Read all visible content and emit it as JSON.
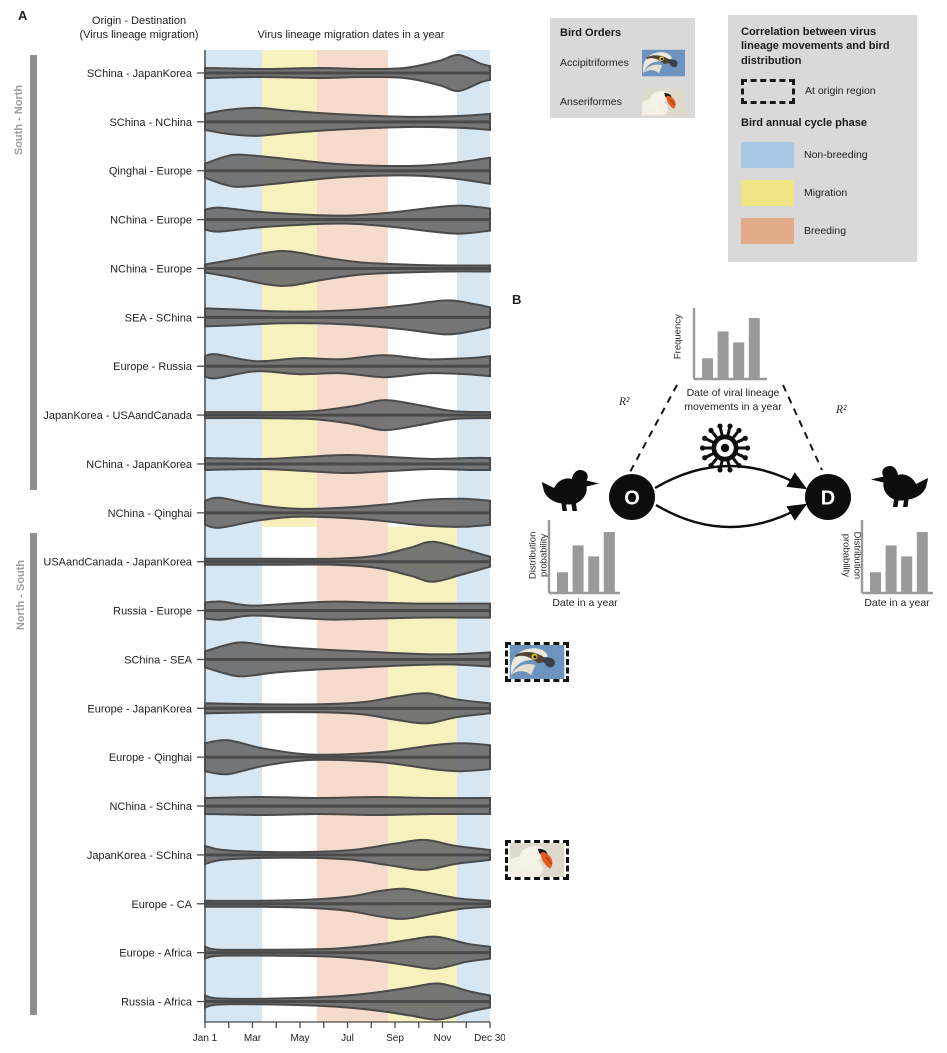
{
  "colors": {
    "legend_bg": "#d9d9d9",
    "violin_fill": "#6f6f6f",
    "violin_stroke": "#4a4a4a",
    "group_bar": "#8f8f8f",
    "group_label": "#9e9e9e",
    "mini_chart": "#9a9a9a",
    "axis": "#4a4a4a",
    "text": "#1f1f1f"
  },
  "panel_a": {
    "label": "A",
    "col_header_line1": "Origin - Destination",
    "col_header_line2": "(Virus lineage migration)",
    "plot_title": "Virus lineage migration dates in a year",
    "group_bars": [
      {
        "label": "South - North",
        "rows": "1-9"
      },
      {
        "label": "North - South",
        "rows": "11-20"
      }
    ]
  },
  "chart_data": {
    "type": "violin",
    "title": "Virus lineage migration dates in a year",
    "x_axis": {
      "ticks": [
        "Jan 1",
        "Mar",
        "May",
        "Jul",
        "Sep",
        "Nov",
        "Dec 30"
      ],
      "minor_ticks": "monthly",
      "range": "Jan 1 - Dec 30"
    },
    "phase_colors": {
      "Non-breeding": "#d6e6f3",
      "Migration": "#f7f1bd",
      "Breeding": "#f4dbcb"
    },
    "phase_band_layouts": {
      "south_north": [
        {
          "phase": "Non-breeding",
          "from": 0,
          "to": 0.2
        },
        {
          "phase": "Migration",
          "from": 0.2,
          "to": 0.393
        },
        {
          "phase": "Breeding",
          "from": 0.393,
          "to": 0.642
        },
        {
          "phase": "Non-breeding",
          "from": 0.884,
          "to": 1
        }
      ],
      "north_south": [
        {
          "phase": "Non-breeding",
          "from": 0,
          "to": 0.2
        },
        {
          "phase": "Breeding",
          "from": 0.393,
          "to": 0.642
        },
        {
          "phase": "Migration",
          "from": 0.642,
          "to": 0.884
        },
        {
          "phase": "Non-breeding",
          "from": 0.884,
          "to": 1
        }
      ]
    },
    "rows": [
      {
        "label": "SChina - JapanKorea",
        "group": "South - North",
        "bands": "south_north",
        "profile": [
          [
            0,
            5
          ],
          [
            0.2,
            4
          ],
          [
            0.4,
            5
          ],
          [
            0.55,
            4
          ],
          [
            0.7,
            5
          ],
          [
            0.82,
            12
          ],
          [
            0.89,
            18
          ],
          [
            0.97,
            9
          ],
          [
            1,
            7
          ]
        ]
      },
      {
        "label": "SChina - NChina",
        "group": "South - North",
        "bands": "south_north",
        "profile": [
          [
            0,
            8
          ],
          [
            0.08,
            12
          ],
          [
            0.18,
            14
          ],
          [
            0.3,
            11
          ],
          [
            0.45,
            8
          ],
          [
            0.6,
            6
          ],
          [
            0.75,
            5
          ],
          [
            0.9,
            6
          ],
          [
            1,
            8
          ]
        ]
      },
      {
        "label": "Qinghai - Europe",
        "group": "South - North",
        "bands": "south_north",
        "profile": [
          [
            0,
            7
          ],
          [
            0.07,
            14
          ],
          [
            0.13,
            16
          ],
          [
            0.28,
            12
          ],
          [
            0.45,
            7
          ],
          [
            0.6,
            5
          ],
          [
            0.75,
            5
          ],
          [
            0.88,
            8
          ],
          [
            1,
            13
          ]
        ]
      },
      {
        "label": "NChina - Europe",
        "group": "South - North",
        "bands": "south_north",
        "profile": [
          [
            0,
            10
          ],
          [
            0.05,
            12
          ],
          [
            0.18,
            8
          ],
          [
            0.35,
            5
          ],
          [
            0.5,
            4
          ],
          [
            0.65,
            7
          ],
          [
            0.8,
            12
          ],
          [
            0.9,
            14
          ],
          [
            1,
            11
          ]
        ]
      },
      {
        "label": "NChina - Europe",
        "group": "South - North",
        "bands": "south_north",
        "profile": [
          [
            0,
            4
          ],
          [
            0.1,
            9
          ],
          [
            0.22,
            16
          ],
          [
            0.3,
            17
          ],
          [
            0.42,
            11
          ],
          [
            0.55,
            6
          ],
          [
            0.7,
            4
          ],
          [
            0.85,
            3
          ],
          [
            1,
            3
          ]
        ]
      },
      {
        "label": "SEA - SChina",
        "group": "South - North",
        "bands": "south_north",
        "profile": [
          [
            0,
            9
          ],
          [
            0.1,
            8
          ],
          [
            0.25,
            6
          ],
          [
            0.4,
            6
          ],
          [
            0.55,
            8
          ],
          [
            0.7,
            12
          ],
          [
            0.85,
            17
          ],
          [
            0.95,
            13
          ],
          [
            1,
            10
          ]
        ]
      },
      {
        "label": "Europe - Russia",
        "group": "South - North",
        "bands": "south_north",
        "profile": [
          [
            0,
            10
          ],
          [
            0.04,
            12
          ],
          [
            0.18,
            5
          ],
          [
            0.33,
            8
          ],
          [
            0.48,
            7
          ],
          [
            0.63,
            11
          ],
          [
            0.78,
            7
          ],
          [
            0.92,
            8
          ],
          [
            1,
            10
          ]
        ]
      },
      {
        "label": "JapanKorea - USAandCanada",
        "group": "South - North",
        "bands": "south_north",
        "profile": [
          [
            0,
            3
          ],
          [
            0.2,
            3
          ],
          [
            0.38,
            4
          ],
          [
            0.52,
            9
          ],
          [
            0.63,
            15
          ],
          [
            0.75,
            10
          ],
          [
            0.87,
            4
          ],
          [
            1,
            3
          ]
        ]
      },
      {
        "label": "NChina - JapanKorea",
        "group": "South - North",
        "bands": "south_north",
        "profile": [
          [
            0,
            6
          ],
          [
            0.2,
            5
          ],
          [
            0.35,
            7
          ],
          [
            0.5,
            9
          ],
          [
            0.65,
            7
          ],
          [
            0.8,
            5
          ],
          [
            0.93,
            6
          ],
          [
            1,
            6
          ]
        ]
      },
      {
        "label": "NChina - Qinghai",
        "group": "",
        "bands": "south_north",
        "profile": [
          [
            0,
            12
          ],
          [
            0.05,
            15
          ],
          [
            0.18,
            8
          ],
          [
            0.32,
            4
          ],
          [
            0.48,
            5
          ],
          [
            0.62,
            8
          ],
          [
            0.78,
            13
          ],
          [
            0.9,
            14
          ],
          [
            1,
            12
          ]
        ]
      },
      {
        "label": "USAandCanada - JapanKorea",
        "group": "North - South",
        "bands": "north_south",
        "profile": [
          [
            0,
            3
          ],
          [
            0.25,
            3
          ],
          [
            0.45,
            3
          ],
          [
            0.6,
            6
          ],
          [
            0.72,
            14
          ],
          [
            0.8,
            20
          ],
          [
            0.9,
            13
          ],
          [
            1,
            5
          ]
        ]
      },
      {
        "label": "Russia - Europe",
        "group": "North - South",
        "bands": "north_south",
        "profile": [
          [
            0,
            8
          ],
          [
            0.06,
            9
          ],
          [
            0.16,
            5
          ],
          [
            0.3,
            7
          ],
          [
            0.45,
            9
          ],
          [
            0.6,
            8
          ],
          [
            0.75,
            7
          ],
          [
            0.9,
            7
          ],
          [
            1,
            7
          ]
        ]
      },
      {
        "label": "SChina - SEA",
        "group": "North - South",
        "bands": "north_south",
        "profile": [
          [
            0,
            8
          ],
          [
            0.07,
            14
          ],
          [
            0.13,
            17
          ],
          [
            0.25,
            13
          ],
          [
            0.4,
            10
          ],
          [
            0.55,
            8
          ],
          [
            0.7,
            6
          ],
          [
            0.85,
            5
          ],
          [
            1,
            7
          ]
        ]
      },
      {
        "label": "Europe - JapanKorea",
        "group": "North - South",
        "bands": "north_south",
        "profile": [
          [
            0,
            5
          ],
          [
            0.2,
            4
          ],
          [
            0.4,
            4
          ],
          [
            0.55,
            6
          ],
          [
            0.68,
            12
          ],
          [
            0.78,
            15
          ],
          [
            0.88,
            9
          ],
          [
            1,
            5
          ]
        ]
      },
      {
        "label": "Europe - Qinghai",
        "group": "North - South",
        "bands": "north_south",
        "profile": [
          [
            0,
            14
          ],
          [
            0.08,
            17
          ],
          [
            0.2,
            9
          ],
          [
            0.35,
            3
          ],
          [
            0.5,
            3
          ],
          [
            0.65,
            6
          ],
          [
            0.8,
            12
          ],
          [
            0.9,
            14
          ],
          [
            1,
            12
          ]
        ]
      },
      {
        "label": "NChina - SChina",
        "group": "North - South",
        "bands": "north_south",
        "profile": [
          [
            0,
            8
          ],
          [
            0.2,
            9
          ],
          [
            0.4,
            8
          ],
          [
            0.6,
            9
          ],
          [
            0.8,
            8
          ],
          [
            1,
            8
          ]
        ]
      },
      {
        "label": "JapanKorea - SChina",
        "group": "North - South",
        "bands": "north_south",
        "profile": [
          [
            0,
            9
          ],
          [
            0.06,
            5
          ],
          [
            0.2,
            3
          ],
          [
            0.38,
            3
          ],
          [
            0.52,
            5
          ],
          [
            0.66,
            11
          ],
          [
            0.77,
            15
          ],
          [
            0.88,
            9
          ],
          [
            1,
            5
          ]
        ]
      },
      {
        "label": "Europe - CA",
        "group": "North - South",
        "bands": "north_south",
        "profile": [
          [
            0,
            3
          ],
          [
            0.2,
            3
          ],
          [
            0.36,
            4
          ],
          [
            0.5,
            7
          ],
          [
            0.62,
            13
          ],
          [
            0.7,
            15
          ],
          [
            0.8,
            10
          ],
          [
            0.9,
            5
          ],
          [
            1,
            3
          ]
        ]
      },
      {
        "label": "Europe - Africa",
        "group": "North - South",
        "bands": "north_south",
        "profile": [
          [
            0,
            6
          ],
          [
            0.05,
            3
          ],
          [
            0.25,
            3
          ],
          [
            0.45,
            4
          ],
          [
            0.6,
            8
          ],
          [
            0.72,
            13
          ],
          [
            0.81,
            16
          ],
          [
            0.92,
            9
          ],
          [
            1,
            6
          ]
        ]
      },
      {
        "label": "Russia - Africa",
        "group": "North - South",
        "bands": "north_south",
        "profile": [
          [
            0,
            6
          ],
          [
            0.05,
            3
          ],
          [
            0.25,
            3
          ],
          [
            0.45,
            5
          ],
          [
            0.6,
            9
          ],
          [
            0.72,
            14
          ],
          [
            0.82,
            18
          ],
          [
            0.93,
            10
          ],
          [
            1,
            6
          ]
        ]
      }
    ]
  },
  "bird_orders_legend": {
    "title": "Bird Orders",
    "items": [
      {
        "name": "Accipitriformes"
      },
      {
        "name": "Anseriformes"
      }
    ]
  },
  "correlation_legend": {
    "title": "Correlation between virus lineage movements and bird distribution",
    "dashed_box_label": "At origin region",
    "subtitle": "Bird annual cycle phase",
    "phases": [
      {
        "label": "Non-breeding",
        "color": "#a7c9e6"
      },
      {
        "label": "Migration",
        "color": "#f0e585"
      },
      {
        "label": "Breeding",
        "color": "#e2ac88"
      }
    ]
  },
  "origin_region_markers": [
    {
      "bird_order": "Accipitriformes",
      "row": "SChina - SEA"
    },
    {
      "bird_order": "Anseriformes",
      "row": "JapanKorea - SChina"
    }
  ],
  "panel_b": {
    "label": "B",
    "caption_line1": "Date of viral lineage",
    "caption_line2": "movements in a year",
    "r2_left": "R²",
    "r2_right": "R²",
    "origin_node": "O",
    "destination_node": "D",
    "top_chart": {
      "ylabel": "Frequency",
      "values": [
        1.7,
        3.9,
        3,
        5
      ]
    },
    "left_chart": {
      "ylabel": "Distribution probability",
      "xlabel": "Date in a year",
      "values": [
        1.7,
        3.9,
        3,
        5
      ]
    },
    "right_chart": {
      "ylabel": "Distribution probability",
      "xlabel": "Date in a year",
      "values": [
        1.7,
        3.9,
        3,
        5
      ]
    }
  }
}
